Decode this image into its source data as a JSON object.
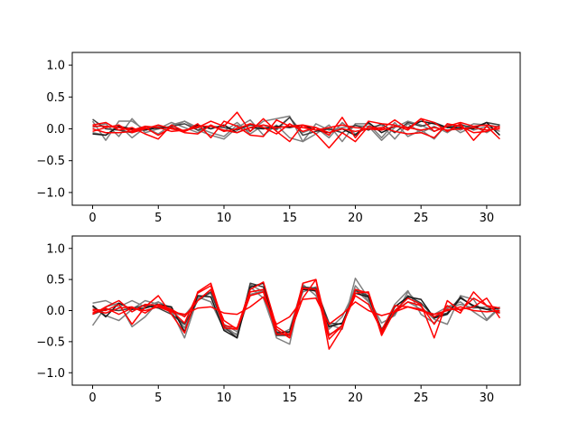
{
  "chart_data": [
    {
      "type": "line",
      "title": "",
      "xlabel": "",
      "ylabel": "",
      "xlim": [
        -1.55,
        32.55
      ],
      "ylim": [
        -1.2,
        1.2
      ],
      "xticks": [
        0,
        5,
        10,
        15,
        20,
        25,
        30
      ],
      "xtick_labels": [
        "0",
        "5",
        "10",
        "15",
        "20",
        "25",
        "30"
      ],
      "yticks": [
        -1.0,
        -0.5,
        0.0,
        0.5,
        1.0
      ],
      "ytick_labels": [
        "−1.0",
        "−0.5",
        "0.0",
        "0.5",
        "1.0"
      ],
      "grid": false,
      "legend": "none",
      "x": [
        0,
        1,
        2,
        3,
        4,
        5,
        6,
        7,
        8,
        9,
        10,
        11,
        12,
        13,
        14,
        15,
        16,
        17,
        18,
        19,
        20,
        21,
        22,
        23,
        24,
        25,
        26,
        27,
        28,
        29,
        30,
        31
      ],
      "series": [
        {
          "color": "#7f7f7f",
          "values": [
            0.12,
            -0.18,
            0.12,
            0.12,
            -0.02,
            0.04,
            0.02,
            0.12,
            0.02,
            -0.06,
            -0.12,
            0.06,
            -0.04,
            0.12,
            0.16,
            0.2,
            -0.2,
            0.08,
            -0.02,
            0.02,
            0.05,
            0.04,
            -0.18,
            0.02,
            0.12,
            0.06,
            -0.04,
            0.06,
            -0.02,
            0.08,
            0.06,
            0.03
          ]
        },
        {
          "color": "#7f7f7f",
          "values": [
            -0.06,
            -0.1,
            0.06,
            -0.14,
            0.02,
            -0.08,
            0.06,
            0.12,
            -0.02,
            -0.1,
            -0.16,
            0.02,
            0.14,
            -0.1,
            0.06,
            -0.14,
            -0.2,
            -0.08,
            0.06,
            -0.2,
            0.08,
            0.08,
            -0.14,
            0.1,
            -0.12,
            -0.02,
            -0.16,
            0.08,
            -0.06,
            0.04,
            -0.06,
            0.06
          ]
        },
        {
          "color": "#7f7f7f",
          "values": [
            0.02,
            0.08,
            -0.12,
            0.16,
            -0.06,
            0.0,
            0.1,
            0.02,
            -0.06,
            0.06,
            -0.04,
            0.1,
            -0.08,
            0.06,
            -0.02,
            0.18,
            -0.06,
            0.02,
            -0.14,
            0.1,
            -0.08,
            0.02,
            0.06,
            -0.16,
            0.08,
            -0.06,
            0.04,
            -0.06,
            0.08,
            -0.02,
            0.04,
            -0.04
          ]
        },
        {
          "color": "#3f3f3f",
          "values": [
            0.15,
            0.0,
            -0.02,
            -0.06,
            0.04,
            0.0,
            0.04,
            0.08,
            -0.02,
            0.04,
            0.02,
            -0.02,
            0.06,
            0.02,
            0.0,
            0.18,
            -0.1,
            -0.04,
            0.0,
            -0.06,
            0.06,
            -0.02,
            0.08,
            -0.06,
            0.1,
            0.04,
            0.1,
            0.02,
            0.06,
            0.02,
            0.1,
            0.06
          ]
        },
        {
          "color": "#1a1a1a",
          "values": [
            -0.08,
            -0.1,
            0.04,
            0.0,
            -0.02,
            0.02,
            0.02,
            -0.04,
            0.06,
            0.0,
            0.06,
            -0.06,
            0.02,
            0.0,
            0.04,
            0.02,
            0.06,
            -0.02,
            -0.06,
            0.0,
            -0.1,
            0.1,
            -0.06,
            0.04,
            0.02,
            0.12,
            0.08,
            0.02,
            0.02,
            0.0,
            0.1,
            -0.1
          ]
        },
        {
          "color": "#ff0000",
          "values": [
            0.04,
            0.04,
            0.02,
            -0.02,
            0.04,
            0.02,
            -0.04,
            -0.02,
            0.02,
            0.12,
            0.04,
            0.26,
            -0.04,
            0.16,
            -0.04,
            -0.2,
            0.06,
            0.02,
            -0.1,
            0.18,
            -0.14,
            0.12,
            0.08,
            0.06,
            -0.02,
            0.16,
            0.1,
            -0.04,
            0.08,
            -0.18,
            0.04,
            -0.16
          ]
        },
        {
          "color": "#ff0000",
          "values": [
            0.06,
            0.1,
            -0.02,
            0.02,
            -0.08,
            -0.16,
            0.06,
            -0.04,
            0.08,
            -0.14,
            0.12,
            0.04,
            -0.1,
            -0.12,
            0.14,
            0.04,
            0.06,
            -0.08,
            -0.3,
            -0.06,
            -0.2,
            0.04,
            0.0,
            0.14,
            0.0,
            0.16,
            -0.04,
            0.04,
            0.1,
            0.04,
            0.06,
            0.02
          ]
        },
        {
          "color": "#ff0000",
          "values": [
            0.0,
            -0.06,
            -0.06,
            -0.04,
            0.02,
            -0.1,
            0.02,
            -0.06,
            -0.08,
            0.06,
            -0.04,
            0.0,
            0.08,
            0.02,
            -0.08,
            0.08,
            -0.04,
            0.02,
            -0.06,
            0.0,
            -0.04,
            0.0,
            0.02,
            -0.04,
            -0.08,
            -0.06,
            -0.14,
            0.08,
            0.04,
            -0.06,
            -0.04,
            0.04
          ]
        },
        {
          "color": "#ff0000",
          "values": [
            -0.04,
            0.02,
            0.06,
            -0.06,
            0.0,
            0.06,
            0.0,
            -0.04,
            0.04,
            0.04,
            -0.02,
            -0.06,
            0.02,
            0.06,
            0.02,
            0.04,
            0.02,
            -0.02,
            0.02,
            0.06,
            0.02,
            0.0,
            -0.02,
            0.04,
            0.02,
            -0.02,
            0.02,
            -0.02,
            0.0,
            0.02,
            -0.02,
            0.0
          ]
        }
      ]
    },
    {
      "type": "line",
      "title": "",
      "xlabel": "",
      "ylabel": "",
      "xlim": [
        -1.55,
        32.55
      ],
      "ylim": [
        -1.2,
        1.2
      ],
      "xticks": [
        0,
        5,
        10,
        15,
        20,
        25,
        30
      ],
      "xtick_labels": [
        "0",
        "5",
        "10",
        "15",
        "20",
        "25",
        "30"
      ],
      "yticks": [
        -1.0,
        -0.5,
        0.0,
        0.5,
        1.0
      ],
      "ytick_labels": [
        "−1.0",
        "−0.5",
        "0.0",
        "0.5",
        "1.0"
      ],
      "grid": false,
      "legend": "none",
      "x": [
        0,
        1,
        2,
        3,
        4,
        5,
        6,
        7,
        8,
        9,
        10,
        11,
        12,
        13,
        14,
        15,
        16,
        17,
        18,
        19,
        20,
        21,
        22,
        23,
        24,
        25,
        26,
        27,
        28,
        29,
        30,
        31
      ],
      "series": [
        {
          "color": "#7f7f7f",
          "values": [
            0.12,
            0.16,
            0.06,
            0.16,
            0.06,
            0.14,
            0.0,
            -0.44,
            0.2,
            0.3,
            -0.24,
            -0.4,
            0.42,
            0.3,
            -0.44,
            -0.54,
            0.42,
            0.24,
            -0.22,
            -0.3,
            0.52,
            0.2,
            -0.2,
            -0.08,
            0.3,
            0.06,
            -0.14,
            -0.22,
            0.24,
            0.18,
            -0.14,
            0.06
          ]
        },
        {
          "color": "#7f7f7f",
          "values": [
            -0.24,
            0.06,
            0.12,
            -0.26,
            -0.1,
            0.14,
            0.04,
            -0.28,
            0.22,
            0.14,
            -0.3,
            -0.38,
            0.26,
            0.32,
            -0.34,
            -0.36,
            0.3,
            0.38,
            -0.38,
            -0.28,
            0.4,
            0.16,
            -0.32,
            0.1,
            0.32,
            -0.06,
            -0.2,
            0.04,
            0.1,
            0.04,
            0.06,
            -0.02
          ]
        },
        {
          "color": "#7f7f7f",
          "values": [
            0.06,
            -0.08,
            -0.16,
            0.02,
            0.16,
            0.1,
            -0.04,
            -0.08,
            0.18,
            0.28,
            -0.22,
            -0.34,
            0.38,
            0.2,
            -0.4,
            -0.3,
            0.4,
            0.3,
            -0.3,
            -0.1,
            0.34,
            0.14,
            -0.3,
            0.0,
            0.14,
            0.02,
            -0.06,
            0.06,
            0.14,
            -0.02,
            -0.16,
            0.04
          ]
        },
        {
          "color": "#3f3f3f",
          "values": [
            -0.06,
            0.02,
            0.0,
            0.04,
            0.08,
            0.04,
            -0.06,
            -0.22,
            0.16,
            0.3,
            -0.26,
            -0.44,
            0.44,
            0.38,
            -0.4,
            -0.4,
            0.38,
            0.36,
            -0.2,
            -0.22,
            0.32,
            0.24,
            -0.3,
            -0.04,
            0.24,
            0.12,
            -0.1,
            -0.04,
            0.22,
            0.06,
            0.02,
            -0.04
          ]
        },
        {
          "color": "#1a1a1a",
          "values": [
            0.08,
            -0.1,
            0.12,
            0.02,
            0.04,
            0.1,
            0.06,
            -0.34,
            0.24,
            0.22,
            -0.32,
            -0.44,
            0.38,
            0.44,
            -0.36,
            -0.34,
            0.34,
            0.32,
            -0.26,
            -0.2,
            0.28,
            0.22,
            -0.34,
            0.06,
            0.22,
            0.18,
            -0.12,
            -0.06,
            0.2,
            0.08,
            0.02,
            0.04
          ]
        },
        {
          "color": "#ff0000",
          "values": [
            0.02,
            0.0,
            0.1,
            -0.22,
            0.06,
            0.24,
            -0.06,
            -0.36,
            0.3,
            0.44,
            -0.24,
            -0.28,
            0.34,
            0.46,
            -0.26,
            -0.4,
            0.44,
            0.5,
            -0.62,
            -0.28,
            0.34,
            0.28,
            -0.4,
            0.0,
            0.2,
            0.1,
            -0.44,
            0.16,
            0.0,
            0.2,
            0.08,
            0.04
          ]
        },
        {
          "color": "#ff0000",
          "values": [
            -0.06,
            0.06,
            0.16,
            -0.02,
            0.1,
            0.08,
            0.0,
            -0.2,
            0.28,
            0.4,
            -0.28,
            -0.3,
            0.3,
            0.34,
            -0.38,
            -0.38,
            0.2,
            0.5,
            -0.4,
            -0.24,
            0.28,
            0.3,
            -0.36,
            -0.02,
            0.14,
            0.08,
            -0.22,
            0.08,
            -0.04,
            0.3,
            0.08,
            -0.04
          ]
        },
        {
          "color": "#ff0000",
          "values": [
            0.0,
            -0.04,
            0.04,
            0.06,
            -0.04,
            0.1,
            0.02,
            -0.1,
            0.16,
            0.34,
            -0.16,
            -0.3,
            0.24,
            0.3,
            -0.3,
            -0.44,
            0.36,
            0.34,
            -0.46,
            -0.24,
            0.24,
            0.1,
            -0.32,
            0.08,
            0.06,
            0.02,
            -0.1,
            0.02,
            0.02,
            0.06,
            0.2,
            -0.12
          ]
        },
        {
          "color": "#ff0000",
          "values": [
            -0.04,
            0.04,
            -0.06,
            0.04,
            0.0,
            0.06,
            -0.02,
            -0.06,
            0.04,
            0.06,
            -0.04,
            -0.06,
            0.06,
            0.22,
            -0.22,
            -0.1,
            0.18,
            0.2,
            -0.22,
            -0.06,
            0.14,
            0.0,
            -0.08,
            -0.02,
            0.06,
            0.0,
            -0.06,
            0.0,
            0.06,
            0.0,
            -0.02,
            0.0
          ]
        }
      ]
    }
  ]
}
